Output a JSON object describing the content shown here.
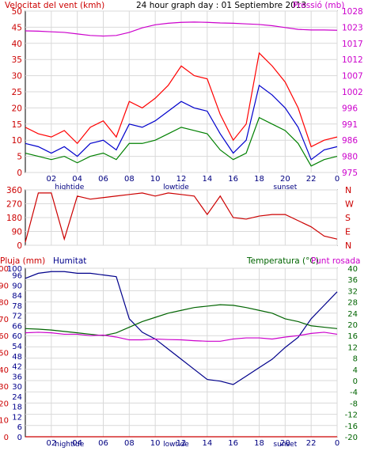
{
  "title": "24 hour graph day : 01 Septiembre 2013",
  "chart_data": [
    {
      "type": "line",
      "name": "wind-pressure",
      "left_axis_label": "Velocitat del vent (kmh)",
      "right_axis_label": "Pressió (mb)",
      "ylim_left": [
        0,
        50
      ],
      "yticks_left": [
        "0",
        "5",
        "10",
        "15",
        "20",
        "25",
        "30",
        "35",
        "40",
        "45",
        "50"
      ],
      "ylim_right": [
        975,
        1028
      ],
      "yticks_right": [
        "975",
        "980",
        "986",
        "991",
        "996",
        "1002",
        "1007",
        "1012",
        "1017",
        "1023",
        "1028"
      ],
      "x_ticks": [
        "02",
        "04",
        "06",
        "08",
        "10",
        "12",
        "14",
        "16",
        "18",
        "20",
        "22",
        "0"
      ],
      "annotations": [
        "hightide",
        "lowtide",
        "sunset"
      ],
      "x": [
        0,
        1,
        2,
        3,
        4,
        5,
        6,
        7,
        8,
        9,
        10,
        11,
        12,
        13,
        14,
        15,
        16,
        17,
        18,
        19,
        20,
        21,
        22,
        23,
        24
      ],
      "series": [
        {
          "name": "gust",
          "color": "#ff0000",
          "values": [
            14,
            12,
            11,
            13,
            9,
            14,
            16,
            11,
            22,
            20,
            23,
            27,
            33,
            30,
            29,
            18,
            10,
            15,
            37,
            33,
            28,
            20,
            8,
            10,
            11
          ]
        },
        {
          "name": "average",
          "color": "#0000cc",
          "values": [
            9,
            8,
            6,
            8,
            5,
            9,
            10,
            7,
            15,
            14,
            16,
            19,
            22,
            20,
            19,
            12,
            6,
            10,
            27,
            24,
            20,
            14,
            4,
            7,
            8
          ]
        },
        {
          "name": "speed",
          "color": "#008000",
          "values": [
            6,
            5,
            4,
            5,
            3,
            5,
            6,
            4,
            9,
            9,
            10,
            12,
            14,
            13,
            12,
            7,
            4,
            6,
            17,
            15,
            13,
            9,
            2,
            4,
            5
          ]
        },
        {
          "name": "pressure",
          "color": "#cc00cc",
          "values": [
            1021.5,
            1021.4,
            1021.2,
            1021,
            1020.5,
            1020,
            1019.8,
            1020,
            1021,
            1022.5,
            1023.5,
            1024,
            1024.3,
            1024.4,
            1024.3,
            1024.1,
            1024,
            1023.8,
            1023.6,
            1023.2,
            1022.6,
            1022,
            1021.8,
            1021.8,
            1021.7
          ]
        }
      ]
    },
    {
      "type": "line",
      "name": "wind-direction",
      "ylim": [
        0,
        360
      ],
      "yticks_left": [
        "0",
        "90",
        "180",
        "270",
        "360"
      ],
      "yticks_right": [
        "N",
        "E",
        "S",
        "W",
        "N"
      ],
      "x": [
        0,
        1,
        2,
        3,
        4,
        5,
        6,
        7,
        8,
        9,
        10,
        11,
        12,
        13,
        14,
        15,
        16,
        17,
        18,
        19,
        20,
        21,
        22,
        23,
        24
      ],
      "series": [
        {
          "name": "direction",
          "color": "#cc0000",
          "values": [
            20,
            340,
            340,
            40,
            320,
            300,
            310,
            320,
            330,
            340,
            320,
            340,
            330,
            320,
            200,
            320,
            180,
            170,
            190,
            200,
            200,
            160,
            120,
            60,
            40
          ]
        }
      ]
    },
    {
      "type": "line",
      "name": "rain-humidity-temperature",
      "left_axis_label_1": "Pluja (mm)",
      "left_axis_label_2": "Humitat",
      "right_axis_label_1": "Temperatura (°C)",
      "right_axis_label_2": "Punt rosada",
      "ylim_rain": [
        0,
        100
      ],
      "yticks_rain": [
        "0",
        "10",
        "20",
        "30",
        "40",
        "50",
        "60",
        "70",
        "80",
        "90",
        "100"
      ],
      "yticks_humidity": [
        "0",
        "6",
        "12",
        "18",
        "24",
        "30",
        "36",
        "42",
        "48",
        "54",
        "60",
        "66",
        "72",
        "78",
        "84",
        "90",
        "96",
        "100"
      ],
      "ylim_temp": [
        -20,
        40
      ],
      "yticks_temp": [
        "-20",
        "-16",
        "-12",
        "-8",
        "-4",
        "0",
        "4",
        "8",
        "12",
        "16",
        "20",
        "24",
        "28",
        "32",
        "36",
        "40"
      ],
      "x_ticks": [
        "02",
        "04",
        "06",
        "08",
        "10",
        "12",
        "14",
        "16",
        "18",
        "20",
        "22",
        "0"
      ],
      "annotations": [
        "hightide",
        "lowtide",
        "sunset"
      ],
      "x": [
        0,
        1,
        2,
        3,
        4,
        5,
        6,
        7,
        8,
        9,
        10,
        11,
        12,
        13,
        14,
        15,
        16,
        17,
        18,
        19,
        20,
        21,
        22,
        23,
        24
      ],
      "series": [
        {
          "name": "rain",
          "color": "#cc0000",
          "values": [
            0,
            0,
            0,
            0,
            0,
            0,
            0,
            0,
            0,
            0,
            0,
            0,
            0,
            0,
            0,
            0,
            0,
            0,
            0,
            0,
            0,
            0,
            0,
            0,
            0
          ]
        },
        {
          "name": "humidity",
          "color": "#00008b",
          "values": [
            94,
            97,
            98,
            98,
            97,
            97,
            96,
            95,
            70,
            62,
            58,
            52,
            46,
            40,
            34,
            33,
            31,
            36,
            41,
            46,
            53,
            59,
            70,
            78,
            86
          ]
        },
        {
          "name": "temperature",
          "color": "#006400",
          "values": [
            18.5,
            18.3,
            18,
            17.5,
            17,
            16.5,
            16,
            17,
            19,
            21,
            22.5,
            24,
            25,
            26,
            26.5,
            27,
            26.8,
            26,
            25,
            24,
            22,
            21,
            19.5,
            19,
            18.5
          ]
        },
        {
          "name": "dew point",
          "color": "#cc00cc",
          "values": [
            17,
            17.2,
            17,
            16.5,
            16.5,
            16,
            16.2,
            15.5,
            14.5,
            14.5,
            14.8,
            14.6,
            14.5,
            14.2,
            14,
            14,
            14.8,
            15.2,
            15.2,
            14.8,
            15.5,
            16,
            16.8,
            17.2,
            16.5
          ]
        }
      ]
    }
  ]
}
